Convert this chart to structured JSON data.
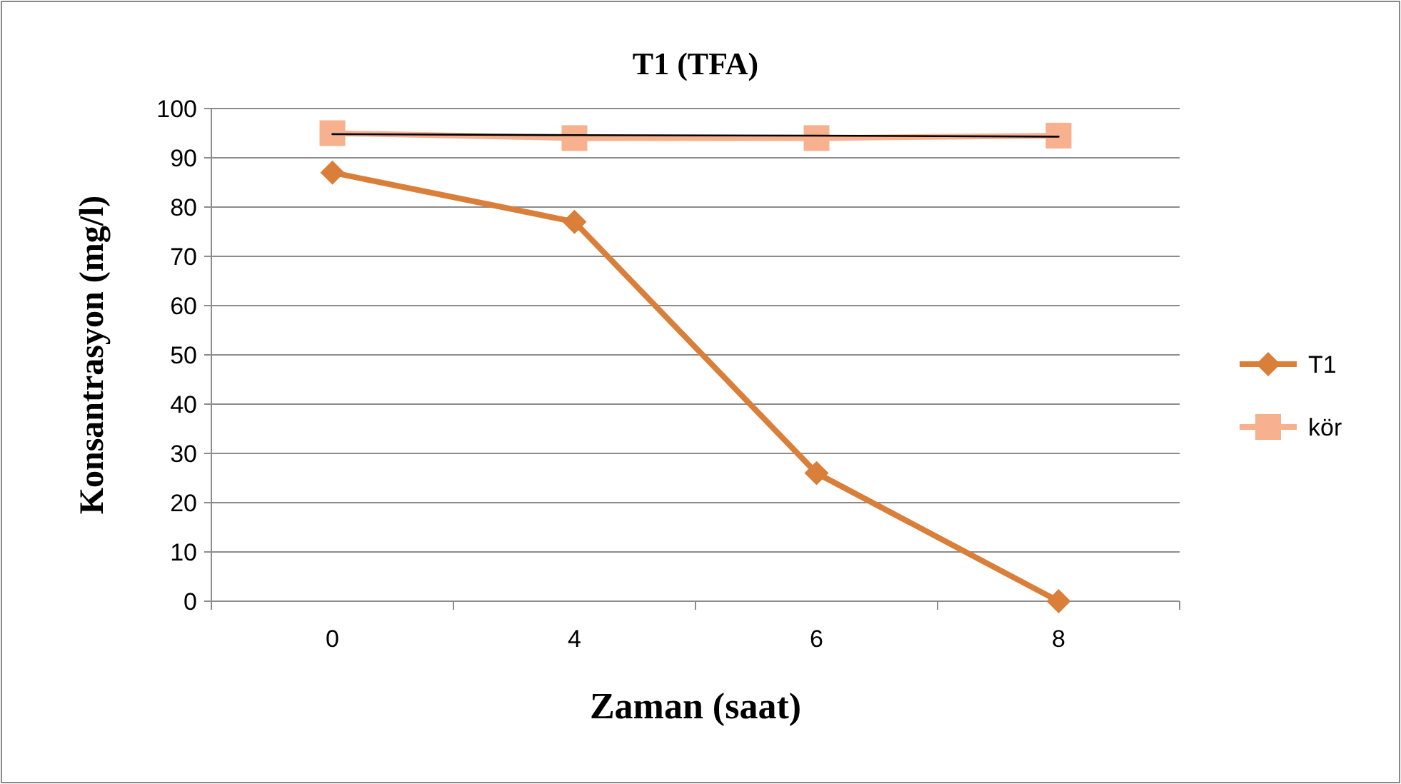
{
  "chart_data": {
    "type": "line",
    "title": "T1 (TFA)",
    "xlabel": "Zaman (saat)",
    "ylabel": "Konsantrasyon (mg/l)",
    "categories": [
      "0",
      "4",
      "6",
      "8"
    ],
    "series": [
      {
        "name": "T1",
        "color": "#d97f3a",
        "values": [
          87,
          77,
          26,
          0
        ],
        "marker": "diamond"
      },
      {
        "name": "kör",
        "color": "#f7b18e",
        "values": [
          95,
          94,
          94,
          94.5
        ],
        "marker": "square"
      },
      {
        "type": "line",
        "color": "#000000",
        "values": [
          94.8,
          94.6,
          94.5,
          94.3
        ],
        "marker": "none"
      }
    ],
    "ylim": [
      0,
      100
    ],
    "yticks": [
      0,
      10,
      20,
      30,
      40,
      50,
      60,
      70,
      80,
      90,
      100
    ],
    "grid": "y",
    "legend": "right"
  }
}
